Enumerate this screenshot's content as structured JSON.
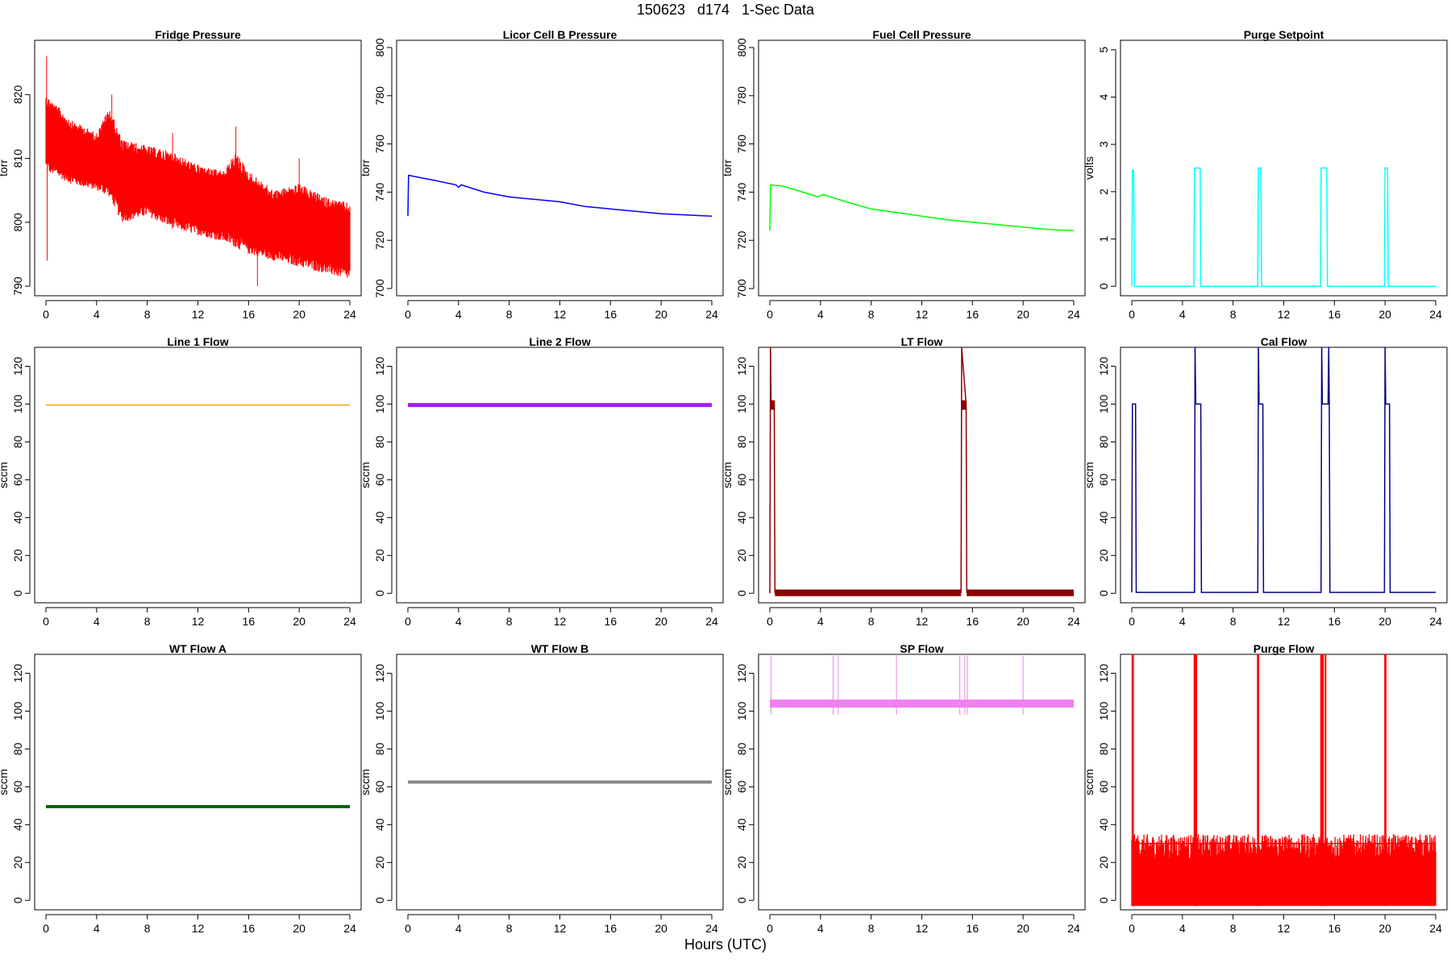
{
  "page": {
    "title": "150623   d174   1-Sec Data",
    "x_axis_title": "Hours (UTC)"
  },
  "chart_data": [
    {
      "type": "line",
      "title": "Fridge Pressure",
      "ylabel": "torr",
      "color": "#ff0000",
      "xlim": [
        0,
        24
      ],
      "ylim": [
        788.5,
        828.5
      ],
      "x_ticks": [
        0,
        4,
        8,
        12,
        16,
        20,
        24
      ],
      "y_ticks": [
        790,
        800,
        810,
        820
      ],
      "x": [
        0,
        2,
        4,
        5,
        6,
        8,
        10,
        12,
        14,
        15,
        16,
        18,
        20,
        22,
        24
      ],
      "series": [
        {
          "role": "upper",
          "values": [
            820,
            816,
            814,
            818,
            813,
            812,
            811,
            809,
            808,
            811,
            808,
            805,
            806,
            804,
            803
          ]
        },
        {
          "role": "lower",
          "values": [
            808,
            806,
            805,
            804,
            800,
            801,
            799,
            798,
            797,
            796,
            795,
            794,
            793,
            792,
            791
          ]
        }
      ],
      "spikes": [
        {
          "x": 0.05,
          "y": 826
        },
        {
          "x": 0.1,
          "y": 794
        },
        {
          "x": 5.2,
          "y": 820
        },
        {
          "x": 10,
          "y": 814
        },
        {
          "x": 15,
          "y": 815
        },
        {
          "x": 20,
          "y": 810
        },
        {
          "x": 16.7,
          "y": 790
        }
      ]
    },
    {
      "type": "line",
      "title": "Licor Cell B Pressure",
      "ylabel": "torr",
      "color": "#0000ff",
      "xlim": [
        0,
        24
      ],
      "ylim": [
        697,
        803
      ],
      "x_ticks": [
        0,
        4,
        8,
        12,
        16,
        20,
        24
      ],
      "y_ticks": [
        700,
        720,
        740,
        760,
        780,
        800
      ],
      "x": [
        0,
        0.05,
        1,
        2,
        3.8,
        4,
        4.2,
        6,
        8,
        10,
        12,
        14,
        16,
        18,
        20,
        22,
        24
      ],
      "values": [
        730,
        747,
        746,
        745,
        743,
        742,
        743,
        740,
        738,
        737,
        736,
        734,
        733,
        732,
        731,
        730.5,
        730
      ]
    },
    {
      "type": "line",
      "title": "Fuel Cell Pressure",
      "ylabel": "torr",
      "color": "#00ff00",
      "xlim": [
        0,
        24
      ],
      "ylim": [
        697,
        803
      ],
      "x_ticks": [
        0,
        4,
        8,
        12,
        16,
        20,
        24
      ],
      "y_ticks": [
        700,
        720,
        740,
        760,
        780,
        800
      ],
      "x": [
        0,
        0.05,
        1,
        2,
        3.8,
        4,
        4.2,
        6,
        8,
        10,
        12,
        14,
        16,
        18,
        20,
        22,
        24
      ],
      "values": [
        724,
        743,
        742.5,
        741,
        738,
        738.5,
        739,
        736,
        733,
        731.5,
        730,
        728.5,
        727.5,
        726.5,
        725.5,
        724.5,
        724
      ]
    },
    {
      "type": "line",
      "title": "Purge Setpoint",
      "ylabel": "volts",
      "color": "#00ffff",
      "xlim": [
        0,
        24
      ],
      "ylim": [
        -0.2,
        5.2
      ],
      "x_ticks": [
        0,
        4,
        8,
        12,
        16,
        20,
        24
      ],
      "y_ticks": [
        0,
        1,
        2,
        3,
        4,
        5
      ],
      "x": [
        0,
        0.05,
        0.15,
        0.2,
        4.9,
        4.95,
        5.4,
        5.45,
        9.95,
        10.0,
        10.2,
        10.25,
        14.9,
        14.95,
        15.4,
        15.45,
        19.95,
        20.0,
        20.2,
        20.25,
        24
      ],
      "values": [
        0,
        2.45,
        2.45,
        0,
        0,
        2.5,
        2.5,
        0,
        0,
        2.5,
        2.5,
        0,
        0,
        2.5,
        2.5,
        0,
        0,
        2.5,
        2.5,
        0,
        0
      ]
    },
    {
      "type": "line",
      "title": "Line 1 Flow",
      "ylabel": "sccm",
      "color": "#ffa500",
      "xlim": [
        0,
        24
      ],
      "ylim": [
        -5,
        130
      ],
      "x_ticks": [
        0,
        4,
        8,
        12,
        16,
        20,
        24
      ],
      "y_ticks": [
        0,
        20,
        40,
        60,
        80,
        100,
        120
      ],
      "x": [
        0,
        24
      ],
      "values": [
        99.5,
        99.5
      ]
    },
    {
      "type": "line",
      "title": "Line 2 Flow",
      "ylabel": "sccm",
      "color": "#a020f0",
      "xlim": [
        0,
        24
      ],
      "ylim": [
        -5,
        130
      ],
      "x_ticks": [
        0,
        4,
        8,
        12,
        16,
        20,
        24
      ],
      "y_ticks": [
        0,
        20,
        40,
        60,
        80,
        100,
        120
      ],
      "x": [
        0,
        24
      ],
      "values": [
        99.5,
        99.5
      ]
    },
    {
      "type": "line",
      "title": "LT Flow",
      "ylabel": "sccm",
      "color": "#8b0000",
      "xlim": [
        0,
        24
      ],
      "ylim": [
        -5,
        130
      ],
      "x_ticks": [
        0,
        4,
        8,
        12,
        16,
        20,
        24
      ],
      "y_ticks": [
        0,
        20,
        40,
        60,
        80,
        100,
        120
      ],
      "x": [
        0,
        0.05,
        0.1,
        0.35,
        0.4,
        15.1,
        15.15,
        15.5,
        15.55,
        24
      ],
      "values": [
        0,
        130,
        100,
        100,
        0.5,
        0.5,
        130,
        100,
        0.5,
        0.5
      ]
    },
    {
      "type": "line",
      "title": "Cal Flow",
      "ylabel": "sccm",
      "color": "#00008b",
      "xlim": [
        0,
        24
      ],
      "ylim": [
        -5,
        130
      ],
      "x_ticks": [
        0,
        4,
        8,
        12,
        16,
        20,
        24
      ],
      "y_ticks": [
        0,
        20,
        40,
        60,
        80,
        100,
        120
      ],
      "x": [
        0,
        0.05,
        0.3,
        0.35,
        4.95,
        5.0,
        5.05,
        5.45,
        5.5,
        9.95,
        10.0,
        10.05,
        10.35,
        10.4,
        14.95,
        15.0,
        15.05,
        15.5,
        15.55,
        15.6,
        15.65,
        19.95,
        20.0,
        20.05,
        20.35,
        20.4,
        24
      ],
      "values": [
        0.5,
        100,
        100,
        0.5,
        0.5,
        130,
        100,
        100,
        0.5,
        0.5,
        130,
        100,
        100,
        0.5,
        0.5,
        130,
        100,
        100,
        130,
        100,
        0.5,
        0.5,
        130,
        100,
        100,
        0.5,
        0.5
      ]
    },
    {
      "type": "line",
      "title": "WT Flow A",
      "ylabel": "sccm",
      "color": "#006400",
      "xlim": [
        0,
        24
      ],
      "ylim": [
        -5,
        130
      ],
      "x_ticks": [
        0,
        4,
        8,
        12,
        16,
        20,
        24
      ],
      "y_ticks": [
        0,
        20,
        40,
        60,
        80,
        100,
        120
      ],
      "x": [
        0,
        24
      ],
      "values": [
        49.5,
        49.5
      ]
    },
    {
      "type": "line",
      "title": "WT Flow B",
      "ylabel": "sccm",
      "color": "#888888",
      "xlim": [
        0,
        24
      ],
      "ylim": [
        -5,
        130
      ],
      "x_ticks": [
        0,
        4,
        8,
        12,
        16,
        20,
        24
      ],
      "y_ticks": [
        0,
        20,
        40,
        60,
        80,
        100,
        120
      ],
      "x": [
        0,
        24
      ],
      "values": [
        62.5,
        62.5
      ]
    },
    {
      "type": "line",
      "title": "SP Flow",
      "ylabel": "sccm",
      "color": "#ee82ee",
      "xlim": [
        0,
        24
      ],
      "ylim": [
        -5,
        130
      ],
      "x_ticks": [
        0,
        4,
        8,
        12,
        16,
        20,
        24
      ],
      "y_ticks": [
        0,
        20,
        40,
        60,
        80,
        100,
        120
      ],
      "x": [
        0,
        24
      ],
      "values": [
        104,
        104
      ],
      "spikes_x": [
        0.1,
        5.0,
        5.4,
        10.0,
        15.0,
        15.4,
        15.6,
        20.0
      ]
    },
    {
      "type": "line",
      "title": "Purge Flow",
      "ylabel": "sccm",
      "color": "#ff0000",
      "xlim": [
        0,
        24
      ],
      "ylim": [
        -5,
        130
      ],
      "x_ticks": [
        0,
        4,
        8,
        12,
        16,
        20,
        24
      ],
      "y_ticks": [
        0,
        20,
        40,
        60,
        80,
        100,
        120
      ],
      "x": [
        0,
        24
      ],
      "values": [
        30,
        30
      ],
      "spikes_x": [
        0.05,
        0.1,
        4.95,
        5.0,
        5.1,
        9.95,
        10.0,
        14.95,
        15.0,
        15.1,
        15.3,
        20.0,
        20.05
      ]
    }
  ]
}
